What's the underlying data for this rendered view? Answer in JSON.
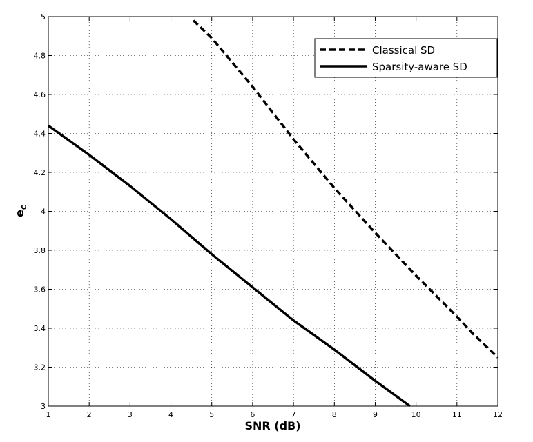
{
  "chart_data": {
    "type": "line",
    "xlabel": "SNR (dB)",
    "ylabel": {
      "base": "e",
      "subscript": "c"
    },
    "xlim": [
      1,
      12
    ],
    "ylim": [
      3,
      5
    ],
    "xticks": [
      1,
      2,
      3,
      4,
      5,
      6,
      7,
      8,
      9,
      10,
      11,
      12
    ],
    "yticks": [
      3,
      3.2,
      3.4,
      3.6,
      3.8,
      4,
      4.2,
      4.4,
      4.6,
      4.8,
      5
    ],
    "grid": true,
    "legend": "top-right",
    "series": [
      {
        "name": "Classical SD",
        "style": "dashed",
        "color": "#000000",
        "x": [
          4.55,
          5,
          6,
          7,
          8,
          9,
          10,
          11,
          11.4,
          12
        ],
        "y": [
          4.98,
          4.89,
          4.64,
          4.37,
          4.12,
          3.89,
          3.67,
          3.46,
          3.37,
          3.25
        ]
      },
      {
        "name": "Sparsity-aware SD",
        "style": "solid",
        "color": "#000000",
        "x": [
          1,
          2,
          3,
          4,
          5,
          6,
          7,
          8,
          9,
          9.85
        ],
        "y": [
          4.44,
          4.29,
          4.13,
          3.96,
          3.78,
          3.61,
          3.44,
          3.29,
          3.13,
          3.0
        ]
      }
    ]
  }
}
